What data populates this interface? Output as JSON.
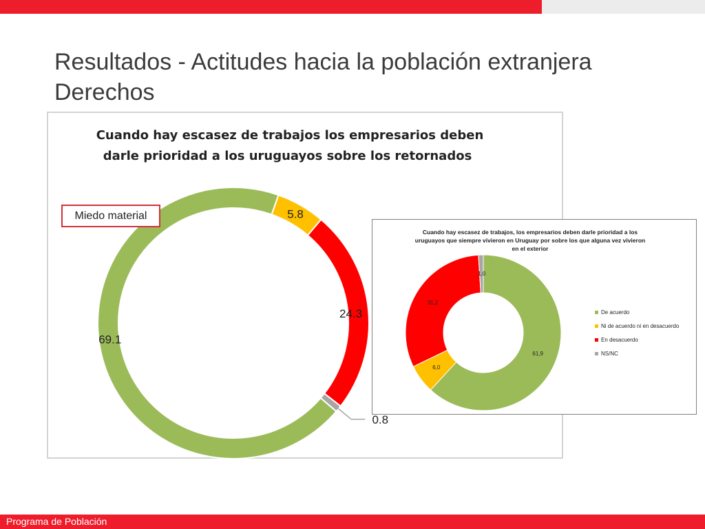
{
  "title": {
    "line1": "Resultados - Actitudes hacia la población extranjera",
    "line2": "Derechos"
  },
  "annotation": "Miedo material",
  "footer": "Programa de Población",
  "colors": {
    "green": "#9bbb59",
    "yellow": "#ffc000",
    "red": "#ff0000",
    "grey": "#a6a6a6",
    "accent": "#ee1d2b"
  },
  "chart_data": [
    {
      "type": "pie",
      "variant": "donut",
      "title_line1": "Cuando hay escasez de trabajos los empresarios deben",
      "title_line2": "darle prioridad a los uruguayos sobre los retornados",
      "slices": [
        {
          "value": 5.8,
          "label": "5.8",
          "color": "#ffc000"
        },
        {
          "value": 24.3,
          "label": "24.3",
          "color": "#ff0000"
        },
        {
          "value": 0.8,
          "label": "0.8",
          "color": "#a6a6a6"
        },
        {
          "value": 69.1,
          "label": "69.1",
          "color": "#9bbb59"
        }
      ]
    },
    {
      "type": "pie",
      "variant": "donut",
      "title_line1": "Cuando hay escasez de trabajos, los empresarios deben darle prioridad a los",
      "title_line2": "uruguayos que siempre vivieron en Uruguay por sobre los que alguna vez vivieron",
      "title_line3": "en el exterior",
      "slices": [
        {
          "value": 61.9,
          "label": "61,9",
          "name": "De acuerdo",
          "color": "#9bbb59"
        },
        {
          "value": 6.0,
          "label": "6,0",
          "name": "Ni de acuerdo ni en desacuerdo",
          "color": "#ffc000"
        },
        {
          "value": 31.2,
          "label": "31,2",
          "name": "En desacuerdo",
          "color": "#ff0000"
        },
        {
          "value": 1.0,
          "label": "1,0",
          "name": "NS/NC",
          "color": "#a6a6a6"
        }
      ],
      "legend_position": "right"
    }
  ]
}
